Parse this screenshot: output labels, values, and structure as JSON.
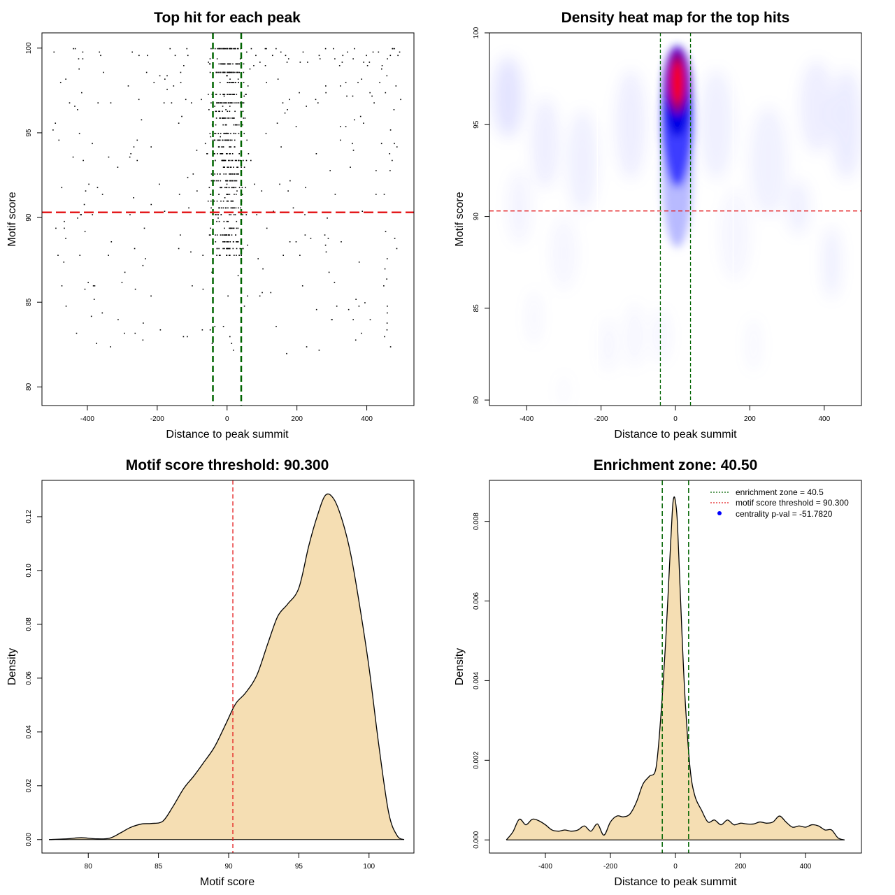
{
  "chart_data": [
    {
      "type": "scatter",
      "title": "Top hit for each peak",
      "xlabel": "Distance to peak summit",
      "ylabel": "Motif score",
      "xlim": [
        -530,
        535
      ],
      "ylim": [
        78.9,
        100.9
      ],
      "xticks": [
        -400,
        -200,
        0,
        200,
        400
      ],
      "yticks": [
        80,
        85,
        90,
        95,
        100
      ],
      "xtick_labels": [
        "-400",
        "-200",
        "0",
        "200",
        "400"
      ],
      "ytick_labels": [
        "80",
        "85",
        "90",
        "95",
        "100"
      ],
      "vlines": [
        -40.5,
        40.5
      ],
      "hline": 90.3,
      "vline_color": "#006400",
      "hline_color": "#e41a1c",
      "point_color": "#000000",
      "points_summary": "about 900 top-hit points; dense band at distance -40..40 with scores 88-100; sparse points elsewhere between -500 and 500",
      "grid": false
    },
    {
      "type": "heatmap",
      "title": "Density heat map for the top hits",
      "xlabel": "Distance to peak summit",
      "ylabel": "Motif score",
      "xlim": [
        -500,
        500
      ],
      "ylim": [
        79.7,
        100
      ],
      "xticks": [
        -400,
        -200,
        0,
        200,
        400
      ],
      "yticks": [
        80,
        85,
        90,
        95,
        100
      ],
      "xtick_labels": [
        "-400",
        "-200",
        "0",
        "200",
        "400"
      ],
      "ytick_labels": [
        "80",
        "85",
        "90",
        "95",
        "100"
      ],
      "vlines": [
        -40.5,
        40.5
      ],
      "hline": 90.3,
      "colormap": [
        "#ffffff",
        "#0000ff",
        "#ff0000"
      ],
      "peak": {
        "x": 5,
        "y": 97.3
      },
      "grid": false
    },
    {
      "type": "area",
      "title": "Motif score threshold: 90.300",
      "xlabel": "Motif score",
      "ylabel": "Density",
      "xlim": [
        76.7,
        103.2
      ],
      "ylim": [
        -0.005,
        0.1335
      ],
      "xticks": [
        80,
        85,
        90,
        95,
        100
      ],
      "yticks": [
        0.0,
        0.02,
        0.04,
        0.06,
        0.08,
        0.1,
        0.12
      ],
      "xtick_labels": [
        "80",
        "85",
        "90",
        "95",
        "100"
      ],
      "ytick_labels": [
        "0.00",
        "0.02",
        "0.04",
        "0.06",
        "0.08",
        "0.10",
        "0.12"
      ],
      "vline": 90.3,
      "fill": "#f5deb3",
      "x": [
        77.2,
        78.5,
        79.5,
        80.5,
        81.5,
        82.3,
        83.0,
        83.8,
        84.5,
        85.3,
        86.0,
        86.8,
        87.5,
        88.2,
        89.0,
        89.8,
        90.5,
        91.2,
        92.0,
        92.8,
        93.5,
        94.2,
        95.0,
        95.7,
        96.3,
        96.9,
        97.5,
        98.1,
        98.7,
        99.3,
        100.0,
        100.7,
        101.4,
        102.0,
        102.5
      ],
      "y": [
        0.0,
        0.0003,
        0.0007,
        0.0003,
        0.0005,
        0.0025,
        0.0045,
        0.0058,
        0.006,
        0.0068,
        0.012,
        0.019,
        0.0235,
        0.0285,
        0.0345,
        0.043,
        0.0505,
        0.0545,
        0.061,
        0.073,
        0.083,
        0.0875,
        0.0935,
        0.109,
        0.12,
        0.128,
        0.1265,
        0.1185,
        0.106,
        0.088,
        0.064,
        0.035,
        0.01,
        0.0015,
        0.0
      ]
    },
    {
      "type": "area",
      "title": "Enrichment zone: 40.50",
      "xlabel": "Distance to peak summit",
      "ylabel": "Density",
      "xlim": [
        -572,
        572
      ],
      "ylim": [
        -0.00033,
        0.00903
      ],
      "xticks": [
        -400,
        -200,
        0,
        200,
        400
      ],
      "yticks": [
        0.0,
        0.002,
        0.004,
        0.006,
        0.008
      ],
      "xtick_labels": [
        "-400",
        "-200",
        "0",
        "200",
        "400"
      ],
      "ytick_labels": [
        "0.000",
        "0.002",
        "0.004",
        "0.006",
        "0.008"
      ],
      "vlines": [
        -40.5,
        40.5
      ],
      "fill": "#f5deb3",
      "x": [
        -520,
        -500,
        -480,
        -460,
        -440,
        -420,
        -400,
        -380,
        -360,
        -340,
        -320,
        -300,
        -280,
        -260,
        -240,
        -220,
        -200,
        -180,
        -160,
        -140,
        -120,
        -100,
        -80,
        -60,
        -45,
        -30,
        -20,
        -10,
        -5,
        0,
        5,
        10,
        20,
        30,
        45,
        60,
        80,
        100,
        120,
        140,
        160,
        180,
        200,
        220,
        240,
        260,
        280,
        300,
        320,
        340,
        360,
        380,
        400,
        420,
        440,
        460,
        480,
        500,
        520
      ],
      "y": [
        0.0,
        0.0002,
        0.00052,
        0.00038,
        0.00052,
        0.00048,
        0.00038,
        0.00025,
        0.00022,
        0.00025,
        0.00022,
        0.00025,
        0.00035,
        0.00022,
        0.0004,
        0.00012,
        0.00045,
        0.0006,
        0.00058,
        0.00065,
        0.00095,
        0.0014,
        0.0016,
        0.0018,
        0.0031,
        0.005,
        0.0066,
        0.0082,
        0.0086,
        0.0085,
        0.0081,
        0.0072,
        0.0052,
        0.0035,
        0.0018,
        0.0011,
        0.00075,
        0.00045,
        0.0005,
        0.00038,
        0.0005,
        0.00038,
        0.00042,
        0.0004,
        0.0004,
        0.00045,
        0.00042,
        0.00045,
        0.0006,
        0.00045,
        0.00032,
        0.00035,
        0.00032,
        0.00038,
        0.00035,
        0.00025,
        0.00025,
        5e-05,
        0.0
      ]
    }
  ],
  "legend": {
    "enrichment_zone": "enrichment zone = 40.5",
    "motif_threshold": "motif score threshold = 90.300",
    "centrality": "centrality p-val = -51.7820",
    "placement": "top-right"
  }
}
